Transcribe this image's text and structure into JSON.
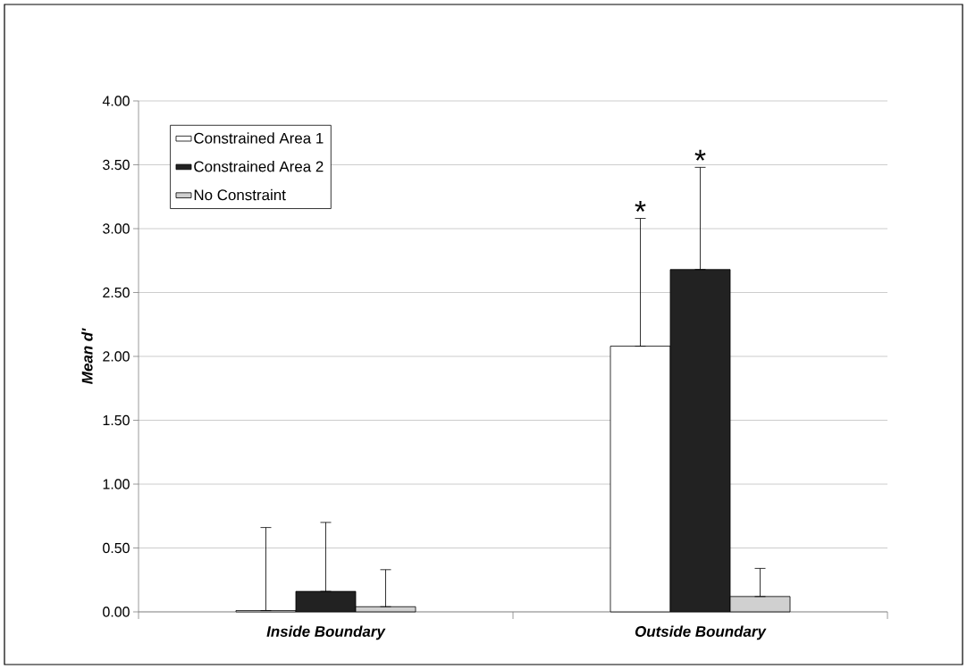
{
  "chart_data": {
    "type": "bar",
    "ylabel": "Mean d'",
    "categories": [
      "Inside Boundary",
      "Outside Boundary"
    ],
    "series": [
      {
        "name": "Constrained Area 1",
        "color": "#ffffff",
        "values": [
          0.01,
          2.08
        ],
        "errors": [
          [
            0.01,
            0.66
          ],
          [
            2.08,
            3.08
          ]
        ]
      },
      {
        "name": "Constrained Area 2",
        "color": "#222222",
        "values": [
          0.16,
          2.68
        ],
        "errors": [
          [
            0.16,
            0.7
          ],
          [
            2.68,
            3.48
          ]
        ]
      },
      {
        "name": "No Constraint",
        "color": "#d0d0d0",
        "values": [
          0.04,
          0.12
        ],
        "errors": [
          [
            0.04,
            0.33
          ],
          [
            0.12,
            0.34
          ]
        ]
      }
    ],
    "ylim": [
      0,
      4
    ],
    "yticks": [
      {
        "value": 0,
        "label": "0.00"
      },
      {
        "value": 0.5,
        "label": "0.50"
      },
      {
        "value": 1,
        "label": "1.00"
      },
      {
        "value": 1.5,
        "label": "1.50"
      },
      {
        "value": 2,
        "label": "2.00"
      },
      {
        "value": 2.5,
        "label": "2.50"
      },
      {
        "value": 3,
        "label": "3.00"
      },
      {
        "value": 3.5,
        "label": "3.50"
      },
      {
        "value": 4,
        "label": "4.00"
      }
    ],
    "grid": "y",
    "legend": "top left",
    "annotations": [
      "*",
      "*"
    ]
  }
}
